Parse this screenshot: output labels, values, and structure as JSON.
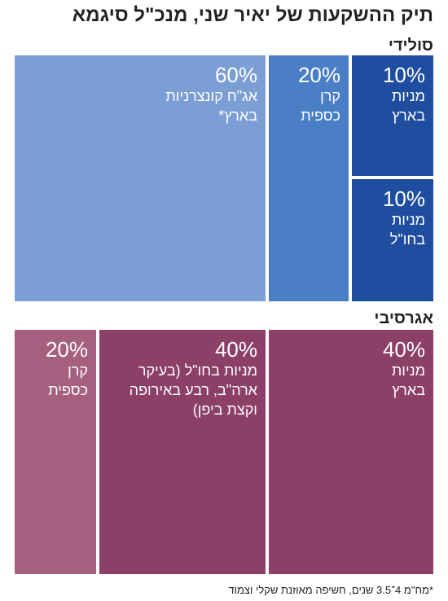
{
  "title": "תיק ההשקעות של יאיר שני, מנכ\"ל סיגמא",
  "chart_data": {
    "type": "treemap",
    "title": "תיק ההשקעות של יאיר שני, מנכ\"ל סיגמא",
    "groups": [
      {
        "name": "סולידי",
        "items": [
          {
            "pct": "60%",
            "label": "אג\"ח קונצרניות\nבארץ*",
            "value": 60,
            "color": "#7b9ed4"
          },
          {
            "pct": "20%",
            "label": "קרן\nכספית",
            "value": 20,
            "color": "#4a7fc6"
          },
          {
            "pct": "10%",
            "label": "מניות\nבארץ",
            "value": 10,
            "color": "#1f4ea0"
          },
          {
            "pct": "10%",
            "label": "מניות\nבחו\"ל",
            "value": 10,
            "color": "#1f4ea0"
          }
        ]
      },
      {
        "name": "אגרסיבי",
        "items": [
          {
            "pct": "20%",
            "label": "קרן\nכספית",
            "value": 20,
            "color": "#a5607f"
          },
          {
            "pct": "40%",
            "label": "מניות בחו\"ל (בעיקר\nארה\"ב, רבע באירופה\nוקצת ביפן)",
            "value": 40,
            "color": "#8c3f67"
          },
          {
            "pct": "40%",
            "label": "מניות\nבארץ",
            "value": 40,
            "color": "#8c3f67"
          }
        ]
      }
    ]
  },
  "footnote": "*מח\"מ 4־3.5 שנים, חשיפה מאוזנת שקלי וצמוד"
}
